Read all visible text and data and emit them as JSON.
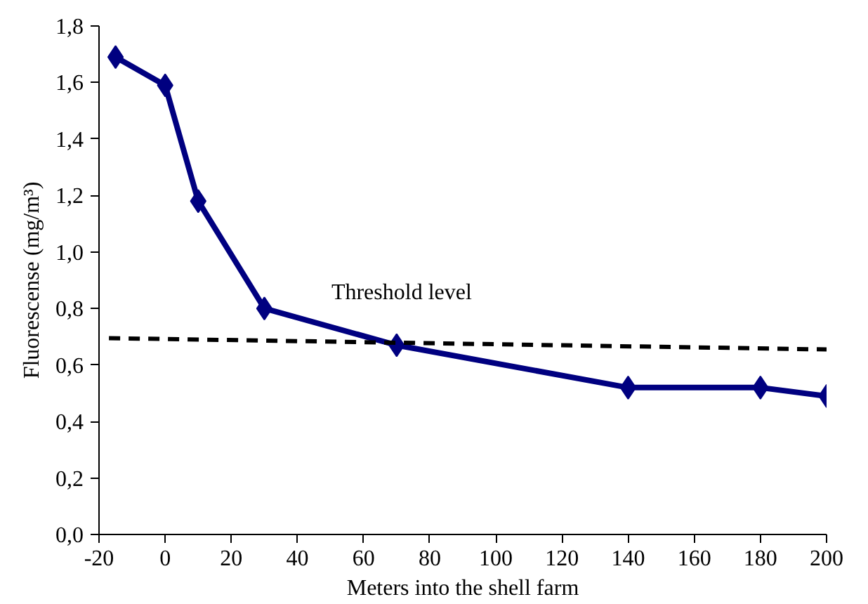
{
  "chart_data": {
    "type": "line",
    "xlabel": "Meters into the shell farm",
    "ylabel": "Fluorescense (mg/m³)",
    "x": [
      -15,
      0,
      10,
      30,
      70,
      140,
      180,
      200
    ],
    "series": [
      {
        "color": "#000080",
        "values": [
          1.69,
          1.59,
          1.18,
          0.8,
          0.67,
          0.52,
          0.52,
          0.49
        ],
        "marker": "diamond",
        "line_style": "solid"
      },
      {
        "name": "Threshold level",
        "color": "#000000",
        "x": [
          -17,
          200
        ],
        "values": [
          0.695,
          0.655
        ],
        "marker": "none",
        "line_style": "dashed"
      }
    ],
    "xlim": [
      -20,
      200
    ],
    "ylim": [
      0,
      1.8
    ],
    "xticks": [
      -20,
      0,
      20,
      40,
      60,
      80,
      100,
      120,
      140,
      160,
      180,
      200
    ],
    "yticks": [
      {
        "value": 0,
        "label": "0,0"
      },
      {
        "value": 0.2,
        "label": "0,2"
      },
      {
        "value": 0.4,
        "label": "0,4"
      },
      {
        "value": 0.6,
        "label": "0,6"
      },
      {
        "value": 0.8,
        "label": "0,8"
      },
      {
        "value": 1.0,
        "label": "1,0"
      },
      {
        "value": 1.2,
        "label": "1,2"
      },
      {
        "value": 1.4,
        "label": "1,4"
      },
      {
        "value": 1.6,
        "label": "1,6"
      },
      {
        "value": 1.8,
        "label": "1,8"
      }
    ],
    "grid": false
  }
}
